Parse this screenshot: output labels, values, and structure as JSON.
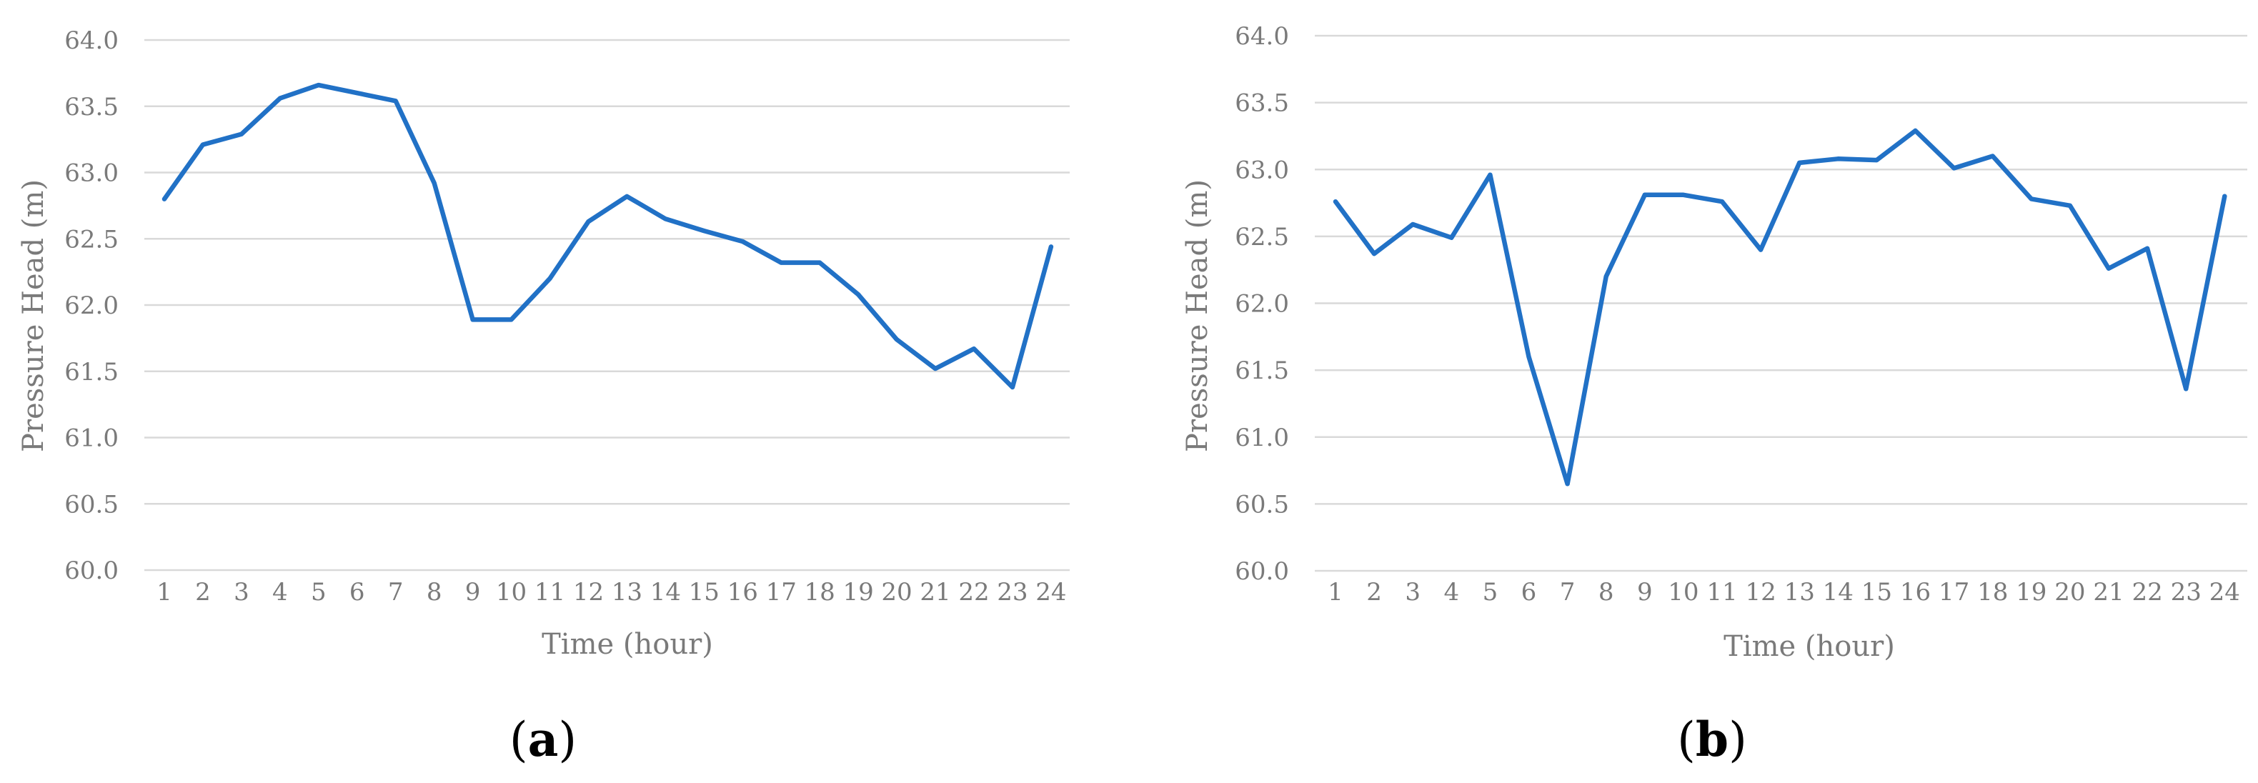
{
  "charts": [
    {
      "panel": {
        "open": "(",
        "letter": "a",
        "close": ")"
      },
      "chart_data": {
        "type": "line",
        "x": [
          1,
          2,
          3,
          4,
          5,
          6,
          7,
          8,
          9,
          10,
          11,
          12,
          13,
          14,
          15,
          16,
          17,
          18,
          19,
          20,
          21,
          22,
          23,
          24
        ],
        "values": [
          62.8,
          63.21,
          63.29,
          63.56,
          63.66,
          63.6,
          63.54,
          62.92,
          61.89,
          61.89,
          62.2,
          62.63,
          62.82,
          62.65,
          62.56,
          62.48,
          62.32,
          62.32,
          62.08,
          61.74,
          61.52,
          61.67,
          61.38,
          62.44
        ],
        "xlabel": "Time (hour)",
        "ylabel": "Pressure Head (m)",
        "ylim": [
          60.0,
          64.0
        ],
        "yticks": [
          "60.0",
          "60.5",
          "61.0",
          "61.5",
          "62.0",
          "62.5",
          "63.0",
          "63.5",
          "64.0"
        ],
        "xticks": [
          "1",
          "2",
          "3",
          "4",
          "5",
          "6",
          "7",
          "8",
          "9",
          "10",
          "11",
          "12",
          "13",
          "14",
          "15",
          "16",
          "17",
          "18",
          "19",
          "20",
          "21",
          "22",
          "23",
          "24"
        ],
        "grid": true,
        "color": "#2171c6"
      }
    },
    {
      "panel": {
        "open": "(",
        "letter": "b",
        "close": ")"
      },
      "chart_data": {
        "type": "line",
        "x": [
          1,
          2,
          3,
          4,
          5,
          6,
          7,
          8,
          9,
          10,
          11,
          12,
          13,
          14,
          15,
          16,
          17,
          18,
          19,
          20,
          21,
          22,
          23,
          24
        ],
        "values": [
          62.76,
          62.37,
          62.59,
          62.49,
          62.96,
          61.6,
          60.65,
          62.2,
          62.81,
          62.81,
          62.76,
          62.4,
          63.05,
          63.08,
          63.07,
          63.29,
          63.01,
          63.1,
          62.78,
          62.73,
          62.26,
          62.41,
          61.36,
          62.8
        ],
        "xlabel": "Time (hour)",
        "ylabel": "Pressure Head (m)",
        "ylim": [
          60.0,
          64.0
        ],
        "yticks": [
          "60.0",
          "60.5",
          "61.0",
          "61.5",
          "62.0",
          "62.5",
          "63.0",
          "63.5",
          "64.0"
        ],
        "xticks": [
          "1",
          "2",
          "3",
          "4",
          "5",
          "6",
          "7",
          "8",
          "9",
          "10",
          "11",
          "12",
          "13",
          "14",
          "15",
          "16",
          "17",
          "18",
          "19",
          "20",
          "21",
          "22",
          "23",
          "24"
        ],
        "grid": true,
        "color": "#2171c6"
      }
    }
  ]
}
